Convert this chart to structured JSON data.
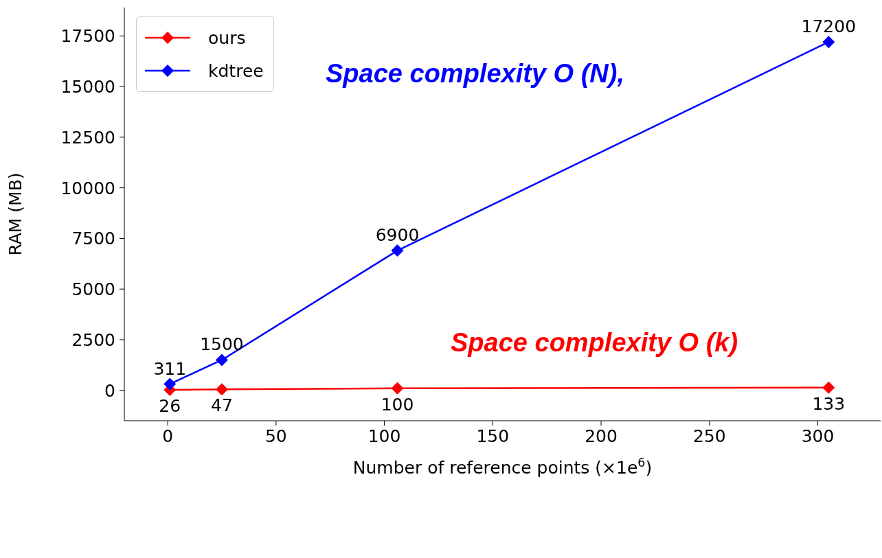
{
  "chart_data": {
    "type": "line",
    "xlabel": "Number of reference points (×1e$^{6}$)",
    "ylabel": "RAM (MB)",
    "x": [
      1,
      25,
      106,
      305
    ],
    "series": [
      {
        "name": "ours",
        "color": "#ff0000",
        "values": [
          26,
          47,
          100,
          133
        ]
      },
      {
        "name": "kdtree",
        "color": "#0000ff",
        "values": [
          311,
          1500,
          6900,
          17200
        ]
      }
    ],
    "xlim": [
      -20,
      329
    ],
    "xticks": [
      0,
      50,
      100,
      150,
      200,
      250,
      300
    ],
    "ylim": [
      -1500,
      18900
    ],
    "yticks": [
      0,
      2500,
      5000,
      7500,
      10000,
      12500,
      15000,
      17500
    ],
    "annotations": [
      "Space complexity O (N),",
      "Space complexity O (k)"
    ],
    "data_labels": true,
    "marker": "diamond",
    "legend": "top left",
    "grid": false
  }
}
